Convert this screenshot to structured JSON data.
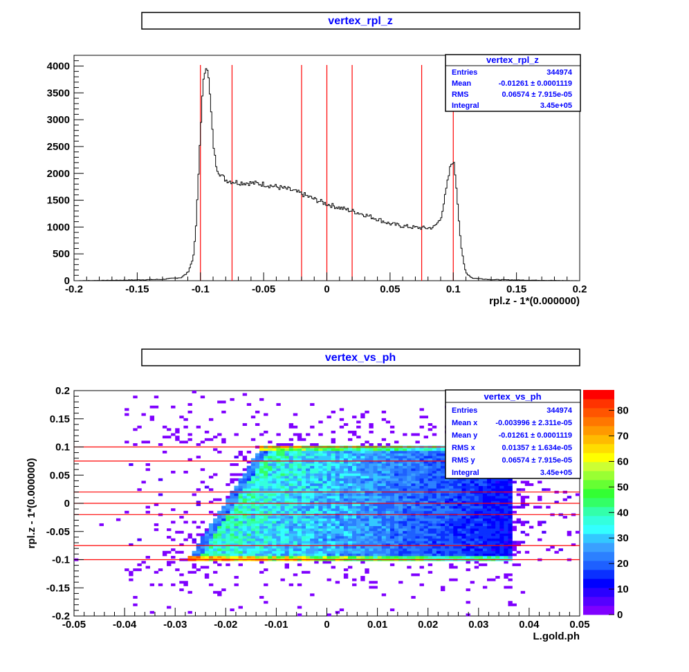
{
  "chart_data": [
    {
      "type": "line",
      "title": "vertex_rpl_z",
      "xlabel": "rpl.z - 1*(0.000000)",
      "ylabel": "",
      "xlim": [
        -0.2,
        0.2
      ],
      "ylim": [
        0,
        4200
      ],
      "x_ticks": [
        "-0.2",
        "-0.15",
        "-0.1",
        "-0.05",
        "0",
        "0.05",
        "0.1",
        "0.15",
        "0.2"
      ],
      "y_ticks": [
        "0",
        "500",
        "1000",
        "1500",
        "2000",
        "2500",
        "3000",
        "3500",
        "4000"
      ],
      "series": [
        {
          "x": [
            -0.2,
            -0.16,
            -0.13,
            -0.115,
            -0.11,
            -0.106,
            -0.104,
            -0.102,
            -0.1,
            -0.098,
            -0.096,
            -0.095,
            -0.094,
            -0.092,
            -0.09,
            -0.088,
            -0.086,
            -0.083,
            -0.08,
            -0.077,
            -0.075,
            -0.07,
            -0.06,
            -0.05,
            -0.04,
            -0.03,
            -0.02,
            -0.01,
            0.0,
            0.01,
            0.02,
            0.03,
            0.04,
            0.05,
            0.06,
            0.07,
            0.08,
            0.085,
            0.09,
            0.093,
            0.096,
            0.098,
            0.1,
            0.102,
            0.104,
            0.106,
            0.108,
            0.11,
            0.115,
            0.13,
            0.16,
            0.2
          ],
          "y": [
            0,
            10,
            25,
            60,
            150,
            400,
            800,
            1700,
            2800,
            3600,
            4000,
            4050,
            3900,
            3300,
            2600,
            2200,
            2050,
            1950,
            1880,
            1860,
            1850,
            1830,
            1820,
            1800,
            1750,
            1700,
            1620,
            1520,
            1430,
            1360,
            1300,
            1230,
            1150,
            1060,
            1020,
            990,
            980,
            1000,
            1150,
            1500,
            1900,
            2150,
            2250,
            1900,
            1300,
            700,
            350,
            150,
            50,
            20,
            10,
            0
          ]
        }
      ],
      "vlines": [
        -0.1,
        -0.075,
        -0.02,
        0,
        0.02,
        0.075,
        0.1
      ],
      "stats": {
        "title": "vertex_rpl_z",
        "rows": [
          {
            "label": "Entries",
            "value": "344974"
          },
          {
            "label": "Mean",
            "value": "-0.01261 ± 0.0001119"
          },
          {
            "label": "RMS",
            "value": "0.06574 ± 7.915e-05"
          },
          {
            "label": "Integral",
            "value": "3.45e+05"
          }
        ]
      }
    },
    {
      "type": "heatmap",
      "title": "vertex_vs_ph",
      "xlabel": "L.gold.ph",
      "ylabel": "rpl.z - 1*(0.000000)",
      "xlim": [
        -0.05,
        0.05
      ],
      "ylim": [
        -0.2,
        0.2
      ],
      "zlim": [
        0,
        88
      ],
      "x_ticks": [
        "-0.05",
        "-0.04",
        "-0.03",
        "-0.02",
        "-0.01",
        "0",
        "0.01",
        "0.02",
        "0.03",
        "0.04",
        "0.05"
      ],
      "y_ticks": [
        "-0.2",
        "-0.15",
        "-0.1",
        "-0.05",
        "0",
        "0.05",
        "0.1",
        "0.15",
        "0.2"
      ],
      "z_ticks": [
        "0",
        "10",
        "20",
        "30",
        "40",
        "50",
        "60",
        "70",
        "80"
      ],
      "hlines": [
        -0.1,
        -0.075,
        -0.02,
        0,
        0.02,
        0.075,
        0.1
      ],
      "palette": [
        "#7f00ff",
        "#5500ff",
        "#2a00ff",
        "#0000ff",
        "#0a30ff",
        "#1e60ff",
        "#2c80ff",
        "#3aa0ff",
        "#33c8ff",
        "#33ffff",
        "#33ffdd",
        "#33ffaa",
        "#33ff66",
        "#33ff33",
        "#66ff33",
        "#99ff33",
        "#ccff33",
        "#ffff00",
        "#ffdd00",
        "#ffbb00",
        "#ff9900",
        "#ff7700",
        "#ff5500",
        "#ff3300",
        "#ff0000"
      ],
      "band": {
        "y_range": [
          -0.1,
          0.1
        ],
        "x_left_at_bottom": -0.0275,
        "x_left_at_top": -0.013,
        "x_right": 0.037,
        "edge_bottom_value": 75,
        "edge_top_value": 60,
        "interior_left_value": 38,
        "interior_right_value": 12
      },
      "stats": {
        "title": "vertex_vs_ph",
        "rows": [
          {
            "label": "Entries",
            "value": "344974"
          },
          {
            "label": "Mean x",
            "value": "-0.003996 ± 2.311e-05"
          },
          {
            "label": "Mean y",
            "value": "-0.01261 ± 0.0001119"
          },
          {
            "label": "RMS x",
            "value": "0.01357 ± 1.634e-05"
          },
          {
            "label": "RMS y",
            "value": "0.06574 ± 7.915e-05"
          },
          {
            "label": "Integral",
            "value": "3.45e+05"
          }
        ]
      }
    }
  ]
}
